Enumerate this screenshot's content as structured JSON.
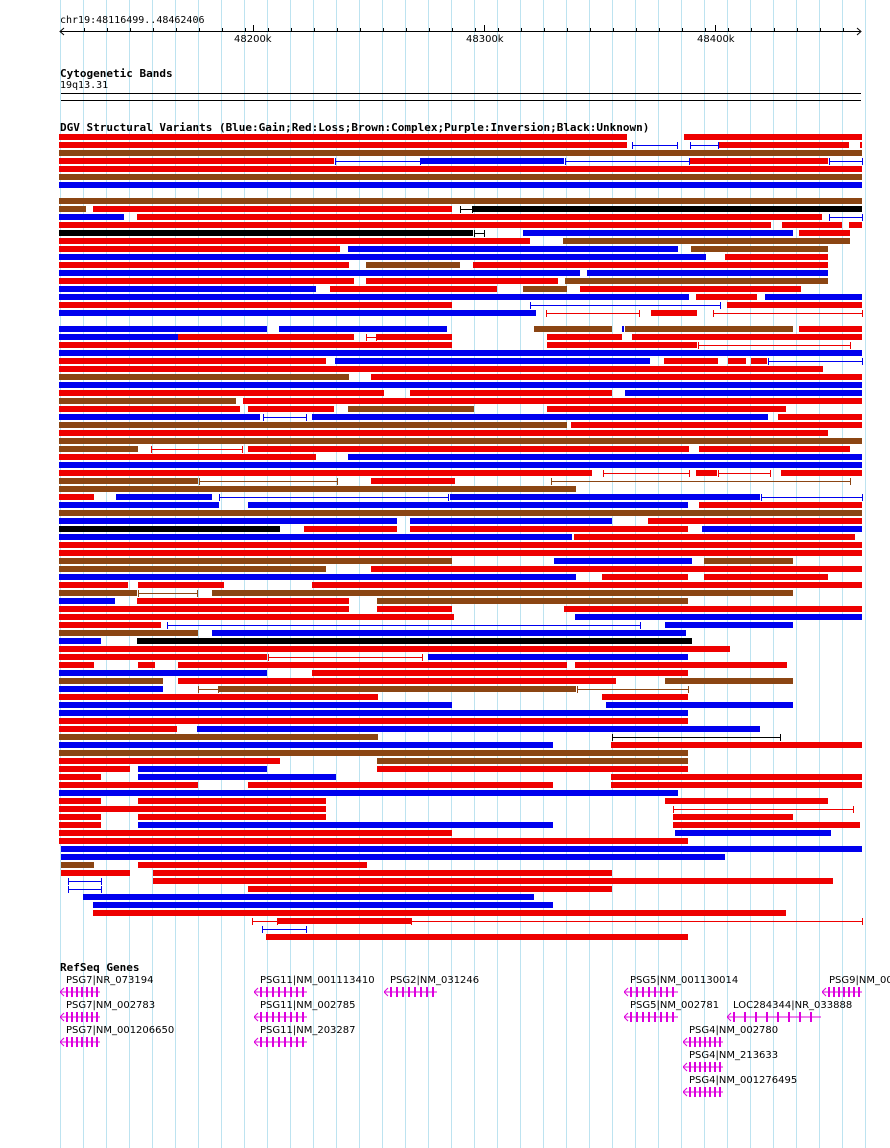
{
  "ruler": {
    "location": "chr19:48116499..48462406",
    "ticks": [
      "48200k",
      "48300k",
      "48400k"
    ],
    "start_arrow_icon": "left-arrow",
    "end_arrow_icon": "right-arrow"
  },
  "cytoband": {
    "title": "Cytogenetic Bands",
    "band": "19q13.31"
  },
  "dgv": {
    "title": "DGV Structural Variants (Blue:Gain;Red:Loss;Brown:Complex;Purple:Inversion;Black:Unknown)",
    "colors": {
      "gain": "#0000ee",
      "loss": "#ee0000",
      "complex": "#8b4513",
      "inversion": "#800080",
      "unknown": "#000000"
    }
  },
  "refseq": {
    "title": "RefSeq Genes",
    "color": "#dd00dd",
    "genes": [
      "PSG7|NR_073194",
      "PSG7|NM_002783",
      "PSG7|NM_001206650",
      "PSG11|NM_001113410",
      "PSG11|NM_002785",
      "PSG11|NM_203287",
      "PSG2|NM_031246",
      "PSG5|NM_001130014",
      "PSG5|NM_002781",
      "PSG9|NM_00",
      "LOC284344|NR_033888",
      "PSG4|NM_002780",
      "PSG4|NM_213633",
      "PSG4|NM_001276495"
    ]
  }
}
